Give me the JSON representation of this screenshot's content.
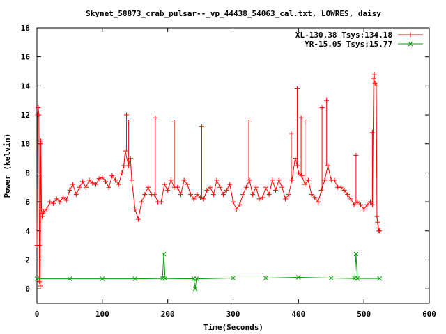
{
  "chart_data": {
    "type": "line",
    "title": "Skynet_58873_crab_pulsar--_vp_44438_54063_cal.txt, LOWRES, daisy",
    "xlabel": "Time(Seconds)",
    "ylabel": "Power (kelvin)",
    "xlim": [
      0,
      600
    ],
    "ylim": [
      -1,
      18
    ],
    "x_ticks": [
      "0",
      "100",
      "200",
      "300",
      "400",
      "500",
      "600"
    ],
    "y_ticks": [
      "0",
      "2",
      "4",
      "6",
      "8",
      "10",
      "12",
      "14",
      "16",
      "18"
    ],
    "x_tick_values": [
      0,
      100,
      200,
      300,
      400,
      500,
      600
    ],
    "y_tick_values": [
      0,
      2,
      4,
      6,
      8,
      10,
      12,
      14,
      16,
      18
    ],
    "grid": false,
    "legend_position": "top-right",
    "series": [
      {
        "name": "XL-130.38 Tsys:134.18",
        "color": "#ff0000",
        "marker": "plus",
        "x": [
          0,
          1,
          2,
          3,
          4,
          5,
          6,
          7,
          8,
          9,
          10,
          15,
          20,
          25,
          30,
          35,
          40,
          45,
          50,
          55,
          60,
          65,
          70,
          75,
          80,
          85,
          90,
          95,
          100,
          105,
          110,
          115,
          120,
          125,
          130,
          133,
          135,
          140,
          143,
          145,
          150,
          155,
          160,
          165,
          170,
          175,
          180,
          185,
          190,
          195,
          200,
          205,
          210,
          215,
          220,
          225,
          230,
          235,
          240,
          245,
          250,
          255,
          260,
          265,
          270,
          275,
          280,
          285,
          290,
          295,
          300,
          305,
          310,
          315,
          320,
          325,
          330,
          335,
          340,
          345,
          350,
          355,
          360,
          365,
          370,
          375,
          380,
          385,
          390,
          395,
          398,
          400,
          405,
          410,
          415,
          420,
          425,
          430,
          435,
          440,
          445,
          450,
          455,
          460,
          465,
          470,
          475,
          480,
          485,
          490,
          495,
          500,
          505,
          510,
          513,
          515,
          517,
          519,
          520,
          521,
          522,
          523,
          524
        ],
        "y": [
          3.0,
          12.0,
          12.5,
          12.0,
          0.5,
          0.2,
          10.0,
          5.5,
          5.0,
          5.2,
          5.3,
          5.5,
          6.0,
          5.9,
          6.2,
          6.0,
          6.3,
          6.1,
          6.8,
          7.2,
          6.5,
          7.0,
          7.4,
          7.0,
          7.5,
          7.3,
          7.2,
          7.6,
          7.7,
          7.4,
          7.0,
          7.8,
          7.5,
          7.2,
          8.0,
          8.5,
          9.5,
          8.5,
          9.0,
          7.5,
          5.5,
          4.8,
          6.0,
          6.5,
          7.0,
          6.5,
          6.5,
          6.0,
          6.0,
          7.2,
          6.8,
          7.5,
          7.0,
          7.0,
          6.5,
          7.5,
          7.2,
          6.5,
          6.2,
          6.5,
          6.3,
          6.2,
          6.8,
          7.0,
          6.5,
          7.5,
          7.0,
          6.5,
          6.8,
          7.2,
          6.0,
          5.5,
          5.8,
          6.5,
          7.0,
          7.5,
          6.5,
          7.0,
          6.2,
          6.3,
          7.0,
          6.5,
          7.5,
          6.8,
          7.5,
          7.0,
          6.2,
          6.5,
          7.5,
          9.0,
          8.5,
          8.0,
          7.8,
          7.2,
          7.5,
          6.5,
          6.3,
          6.0,
          6.8,
          7.5,
          8.5,
          7.5,
          7.5,
          7.0,
          7.0,
          6.8,
          6.5,
          6.2,
          5.8,
          6.0,
          5.8,
          5.5,
          5.8,
          6.0,
          5.8,
          14.5,
          14.2,
          14.0,
          5.0,
          4.6,
          4.2,
          4.0,
          4.0
        ],
        "spikes": [
          {
            "x": 4,
            "y": 3.0
          },
          {
            "x": 6,
            "y": 10.2
          },
          {
            "x": 137,
            "y": 12.0
          },
          {
            "x": 140,
            "y": 11.5
          },
          {
            "x": 181,
            "y": 11.8
          },
          {
            "x": 210,
            "y": 11.5
          },
          {
            "x": 252,
            "y": 11.2
          },
          {
            "x": 324,
            "y": 11.5
          },
          {
            "x": 389,
            "y": 10.7
          },
          {
            "x": 398,
            "y": 13.8
          },
          {
            "x": 404,
            "y": 11.8
          },
          {
            "x": 410,
            "y": 11.5
          },
          {
            "x": 436,
            "y": 12.5
          },
          {
            "x": 443,
            "y": 13.0
          },
          {
            "x": 488,
            "y": 9.2
          },
          {
            "x": 513,
            "y": 10.8
          },
          {
            "x": 516,
            "y": 14.8
          }
        ]
      },
      {
        "name": "YR-15.05 Tsys:15.77",
        "color": "#00a000",
        "marker": "cross",
        "x": [
          0,
          50,
          100,
          150,
          192,
          194,
          196,
          240,
          242,
          244,
          300,
          350,
          400,
          450,
          486,
          488,
          490,
          524
        ],
        "y": [
          0.7,
          0.7,
          0.7,
          0.7,
          0.72,
          2.4,
          0.72,
          0.7,
          0.0,
          0.7,
          0.75,
          0.75,
          0.8,
          0.75,
          0.72,
          2.4,
          0.72,
          0.72
        ]
      }
    ]
  }
}
